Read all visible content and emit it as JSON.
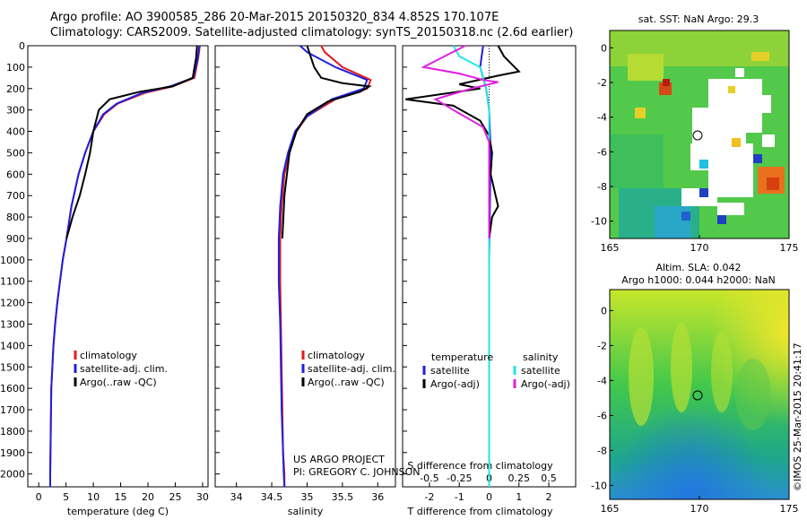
{
  "header": {
    "line1": "Argo profile: AO 3900585_286 20-Mar-2015 20150320_834 4.852S 170.107E",
    "line2": "Climatology: CARS2009. Satellite-adjusted climatology: synTS_20150318.nc (2.6d earlier)"
  },
  "colors": {
    "climatology": "#e41a1c",
    "satellite": "#1f1fe0",
    "argo": "#000000",
    "sal_satellite": "#22e6e6",
    "sal_argo": "#e020e0"
  },
  "chart_data": [
    {
      "id": "temperature",
      "type": "line",
      "xlabel": "temperature (deg C)",
      "ylabel": "",
      "xlim": [
        -2,
        31
      ],
      "ylim": [
        2060,
        0
      ],
      "xticks": [
        0,
        5,
        10,
        15,
        20,
        25,
        30
      ],
      "xtick_labels": [
        "0",
        "5",
        "10",
        "15",
        "20",
        "25",
        "30"
      ],
      "yticks": [
        0,
        100,
        200,
        300,
        400,
        500,
        600,
        700,
        800,
        900,
        1000,
        1100,
        1200,
        1300,
        1400,
        1500,
        1600,
        1700,
        1800,
        1900,
        2000
      ],
      "ytick_labels": [
        "0",
        "100",
        "200",
        "300",
        "400",
        "500",
        "600",
        "700",
        "800",
        "900",
        "1000",
        "1100",
        "1200",
        "1300",
        "1400",
        "1500",
        "1600",
        "1700",
        "1800",
        "1900",
        "2000"
      ],
      "legend": [
        "climatology",
        "satellite-adj. clim.",
        "Argo(..raw -QC)"
      ],
      "series": [
        {
          "name": "climatology",
          "color": "#e41a1c",
          "x": [
            29.5,
            29.2,
            28.5,
            24.5,
            19.5,
            14.5,
            12.0,
            10.0,
            8.5,
            7.3,
            6.0,
            5.1,
            4.4,
            3.9,
            3.4,
            3.0,
            2.7,
            2.5,
            2.3,
            2.2,
            2.1,
            2.1
          ],
          "y": [
            0,
            60,
            150,
            190,
            220,
            270,
            320,
            400,
            500,
            600,
            750,
            900,
            1000,
            1100,
            1200,
            1300,
            1400,
            1500,
            1600,
            1800,
            2000,
            2060
          ]
        },
        {
          "name": "satellite-adj. clim.",
          "color": "#1f1fe0",
          "x": [
            29.4,
            29.1,
            28.3,
            24.0,
            19.0,
            14.3,
            11.8,
            10.0,
            8.5,
            7.3,
            6.0,
            5.1,
            4.4,
            3.9,
            3.4,
            3.0,
            2.7,
            2.5,
            2.3,
            2.2,
            2.1,
            2.1
          ],
          "y": [
            0,
            60,
            150,
            190,
            220,
            270,
            320,
            400,
            500,
            600,
            750,
            900,
            1000,
            1100,
            1200,
            1300,
            1400,
            1500,
            1600,
            1800,
            2000,
            2060
          ]
        },
        {
          "name": "Argo(..raw -QC)",
          "color": "#000000",
          "x": [
            29.0,
            28.8,
            28.2,
            24.5,
            18.5,
            13.0,
            11.0,
            10.0,
            9.4,
            8.5,
            7.5,
            6.2,
            5.1
          ],
          "y": [
            0,
            60,
            150,
            190,
            215,
            250,
            300,
            400,
            500,
            600,
            700,
            800,
            900
          ]
        }
      ]
    },
    {
      "id": "salinity",
      "type": "line",
      "xlabel": "salinity",
      "ylabel": "",
      "xlim": [
        33.7,
        36.25
      ],
      "ylim": [
        2060,
        0
      ],
      "xticks": [
        34,
        34.5,
        35,
        35.5,
        36
      ],
      "xtick_labels": [
        "34",
        "34.5",
        "35",
        "35.5",
        "36"
      ],
      "legend": [
        "climatology",
        "satellite-adj. clim.",
        "Argo(..raw -QC)"
      ],
      "annotations": [
        "US ARGO PROJECT",
        "PI: GREGORY C. JOHNSON"
      ],
      "series": [
        {
          "name": "climatology",
          "color": "#e41a1c",
          "x": [
            35.2,
            35.25,
            35.5,
            35.9,
            35.85,
            35.4,
            35.0,
            34.85,
            34.75,
            34.68,
            34.64,
            34.62,
            34.62,
            34.63,
            34.64,
            34.65,
            34.66,
            34.68,
            34.68
          ],
          "y": [
            0,
            30,
            100,
            160,
            200,
            250,
            330,
            400,
            500,
            600,
            750,
            900,
            1100,
            1300,
            1500,
            1700,
            1900,
            2000,
            2060
          ]
        },
        {
          "name": "satellite-adj. clim.",
          "color": "#1f1fe0",
          "x": [
            34.9,
            35.0,
            35.4,
            35.85,
            35.8,
            35.35,
            35.0,
            34.83,
            34.73,
            34.66,
            34.62,
            34.6,
            34.6,
            34.62,
            34.63,
            34.64,
            34.66,
            34.67,
            34.68
          ],
          "y": [
            0,
            30,
            100,
            160,
            200,
            250,
            330,
            400,
            500,
            600,
            750,
            900,
            1100,
            1300,
            1500,
            1700,
            1900,
            2000,
            2060
          ]
        },
        {
          "name": "Argo(..raw -QC)",
          "color": "#000000",
          "x": [
            35.0,
            35.05,
            35.1,
            35.2,
            35.5,
            35.88,
            35.75,
            35.3,
            35.0,
            34.85,
            34.75,
            34.68,
            34.65
          ],
          "y": [
            0,
            50,
            100,
            150,
            175,
            190,
            215,
            260,
            320,
            400,
            500,
            700,
            900
          ]
        }
      ]
    },
    {
      "id": "difference",
      "type": "line",
      "xlabel": "T difference from climatology",
      "top_label": "S difference from climatology",
      "xlim": [
        -2.9,
        2.9
      ],
      "ylim": [
        2060,
        0
      ],
      "xticks": [
        -2,
        -1,
        0,
        1,
        2
      ],
      "xtick_labels": [
        "-2",
        "-1",
        "0",
        "1",
        "2"
      ],
      "s_xticks": [
        -2,
        -1,
        0,
        1,
        2
      ],
      "s_xtick_labels": [
        "-0.5",
        "-0.25",
        "0",
        "0.25",
        "0.5"
      ],
      "legend": {
        "temperature_header": "temperature",
        "salinity_header": "salinity",
        "temperature_items": [
          "satellite",
          "Argo(-adj)"
        ],
        "salinity_items": [
          "satellite",
          "Argo(-adj)"
        ]
      },
      "series": [
        {
          "name": "temperature satellite",
          "color": "#1f1fe0",
          "x": [
            -0.2,
            -0.3,
            -0.1,
            0.0,
            0.05,
            0.0,
            0.0,
            0.0
          ],
          "y": [
            0,
            100,
            200,
            300,
            500,
            1000,
            1500,
            2060
          ]
        },
        {
          "name": "temperature Argo(-adj)",
          "color": "#000000",
          "x": [
            0.3,
            0.5,
            1.0,
            0.3,
            -1.0,
            -0.3,
            -2.8,
            -1.2,
            -0.3,
            0.0,
            0.1,
            0.05,
            0.3,
            0.1,
            0.0
          ],
          "y": [
            0,
            50,
            120,
            140,
            180,
            200,
            250,
            280,
            350,
            420,
            500,
            600,
            750,
            800,
            900
          ]
        },
        {
          "name": "salinity satellite",
          "color": "#22e6e6",
          "x": [
            -1.2,
            -1.0,
            -0.3,
            -0.1,
            0.0,
            0.0,
            0.0
          ],
          "y": [
            0,
            50,
            100,
            200,
            300,
            1000,
            2060
          ]
        },
        {
          "name": "salinity Argo(-adj)",
          "color": "#e020e0",
          "x": [
            -0.8,
            -1.5,
            -2.2,
            -1.0,
            -0.2,
            0.3,
            -0.6,
            -1.8,
            -1.2,
            -0.2,
            0.0,
            0.0
          ],
          "y": [
            0,
            50,
            100,
            130,
            160,
            170,
            200,
            250,
            300,
            380,
            450,
            900
          ]
        }
      ]
    },
    {
      "id": "sst_map",
      "type": "heatmap",
      "title": "sat. SST: NaN Argo: 29.3",
      "xlim": [
        165,
        175
      ],
      "ylim": [
        -11,
        1
      ],
      "xticks": [
        165,
        170,
        175
      ],
      "xtick_labels": [
        "165",
        "170",
        "175"
      ],
      "yticks": [
        0,
        -2,
        -4,
        -6,
        -8,
        -10
      ],
      "ytick_labels": [
        "0",
        "-2",
        "-4",
        "-6",
        "-8",
        "-10"
      ],
      "marker": {
        "lon": 170.107,
        "lat": -4.852
      }
    },
    {
      "id": "sla_map",
      "type": "heatmap",
      "title": "Altim. SLA: 0.042",
      "subtitle": "Argo h1000: 0.044 h2000: NaN",
      "xlim": [
        165,
        175
      ],
      "ylim": [
        -10.8,
        1.2
      ],
      "xticks": [
        165,
        170,
        175
      ],
      "xtick_labels": [
        "165",
        "170",
        "175"
      ],
      "yticks": [
        0,
        -2,
        -4,
        -6,
        -8,
        -10
      ],
      "ytick_labels": [
        "0",
        "-2",
        "-4",
        "-6",
        "-8",
        "-10"
      ],
      "marker": {
        "lon": 170.107,
        "lat": -4.852
      }
    }
  ],
  "credit": "©IMOS 25-Mar-2015 20:41:17"
}
